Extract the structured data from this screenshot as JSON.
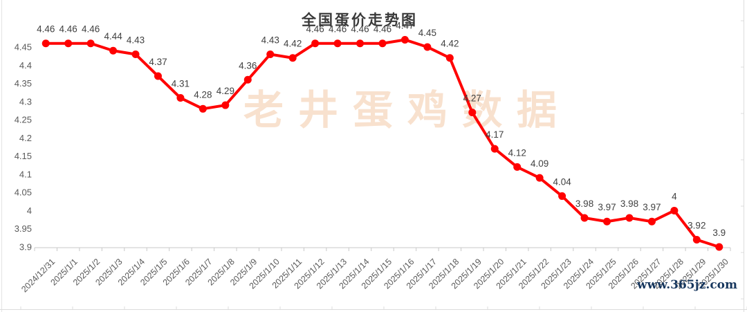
{
  "title": "全国蛋价走势图",
  "watermark": "老井蛋鸡数据",
  "footer_url": "www.365jz.com",
  "colors": {
    "line": "#FF0000",
    "marker": "#FF0000",
    "data_label": "#404040",
    "axis_text": "#595959",
    "axis_line": "#C8C8C8",
    "watermark": "#F8E1CE",
    "url_text": "#17375E",
    "sheet_border": "#DCDCDC"
  },
  "chart_data": {
    "type": "line",
    "title": "全国蛋价走势图",
    "categories": [
      "2024/12/31",
      "2025/1/1",
      "2025/1/2",
      "2025/1/3",
      "2025/1/4",
      "2025/1/5",
      "2025/1/6",
      "2025/1/7",
      "2025/1/8",
      "2025/1/9",
      "2025/1/10",
      "2025/1/11",
      "2025/1/12",
      "2025/1/13",
      "2025/1/14",
      "2025/1/15",
      "2025/1/16",
      "2025/1/17",
      "2025/1/18",
      "2025/1/19",
      "2025/1/20",
      "2025/1/21",
      "2025/1/22",
      "2025/1/23",
      "2025/1/24",
      "2025/1/25",
      "2025/1/26",
      "2025/1/27",
      "2025/1/28",
      "2025/1/29",
      "2025/1/30"
    ],
    "series": [
      {
        "name": "全国蛋价",
        "values": [
          4.46,
          4.46,
          4.46,
          4.44,
          4.43,
          4.37,
          4.31,
          4.28,
          4.29,
          4.36,
          4.43,
          4.42,
          4.46,
          4.46,
          4.46,
          4.46,
          4.47,
          4.45,
          4.42,
          4.27,
          4.17,
          4.12,
          4.09,
          4.04,
          3.98,
          3.97,
          3.98,
          3.97,
          4,
          3.92,
          3.9
        ]
      }
    ],
    "ylim": [
      3.9,
      4.5
    ],
    "yticks": [
      3.9,
      3.95,
      4,
      4.05,
      4.1,
      4.15,
      4.2,
      4.25,
      4.3,
      4.35,
      4.4,
      4.45
    ],
    "grid": false,
    "legend_position": "none",
    "marker": "circle",
    "data_labels": true,
    "x_label_rotation": -45
  }
}
